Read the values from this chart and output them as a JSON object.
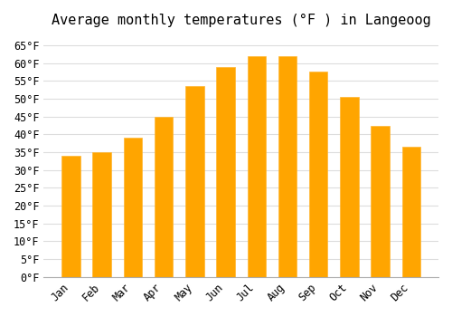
{
  "title": "Average monthly temperatures (°F ) in Langeoog",
  "months": [
    "Jan",
    "Feb",
    "Mar",
    "Apr",
    "May",
    "Jun",
    "Jul",
    "Aug",
    "Sep",
    "Oct",
    "Nov",
    "Dec"
  ],
  "values": [
    34.0,
    35.0,
    39.0,
    45.0,
    53.5,
    59.0,
    62.0,
    62.0,
    57.5,
    50.5,
    42.5,
    36.5
  ],
  "bar_color": "#FFA500",
  "bar_edge_color": "#FFB733",
  "ylim": [
    0,
    68
  ],
  "yticks": [
    0,
    5,
    10,
    15,
    20,
    25,
    30,
    35,
    40,
    45,
    50,
    55,
    60,
    65
  ],
  "background_color": "#FFFFFF",
  "grid_color": "#DDDDDD",
  "title_fontsize": 11,
  "tick_fontsize": 8.5,
  "font_family": "monospace"
}
